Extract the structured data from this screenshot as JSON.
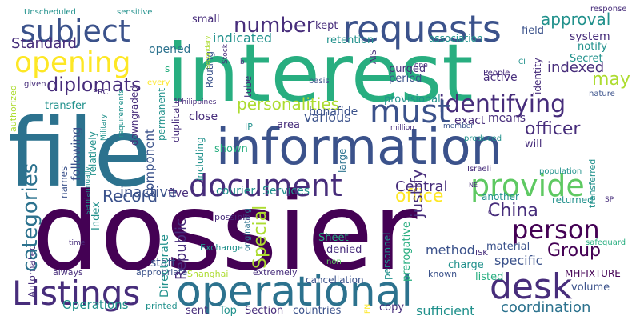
{
  "palette": {
    "dark_purple": "#440154",
    "indigo": "#472d7b",
    "slate_blue": "#3b528b",
    "steel_blue": "#2c728e",
    "teal": "#21918c",
    "sea_green": "#28ae80",
    "green": "#5ec962",
    "lime": "#addc30",
    "yellow": "#fde725"
  },
  "words": [
    {
      "text": "dossier",
      "color": "dark_purple"
    },
    {
      "text": "file",
      "color": "steel_blue"
    },
    {
      "text": "interest",
      "color": "sea_green"
    },
    {
      "text": "information",
      "color": "slate_blue"
    },
    {
      "text": "operational",
      "color": "steel_blue"
    },
    {
      "text": "requests",
      "color": "slate_blue"
    },
    {
      "text": "document",
      "color": "indigo"
    },
    {
      "text": "provide",
      "color": "green"
    },
    {
      "text": "Listings",
      "color": "indigo"
    },
    {
      "text": "desk",
      "color": "indigo"
    },
    {
      "text": "identifying",
      "color": "indigo"
    },
    {
      "text": "subject",
      "color": "slate_blue"
    },
    {
      "text": "opening",
      "color": "yellow"
    },
    {
      "text": "must",
      "color": "slate_blue"
    },
    {
      "text": "number",
      "color": "indigo"
    },
    {
      "text": "person",
      "color": "dark_purple"
    },
    {
      "text": "categories",
      "color": "steel_blue"
    },
    {
      "text": "diplomats",
      "color": "indigo"
    },
    {
      "text": "personalities",
      "color": "lime"
    },
    {
      "text": "Standard",
      "color": "indigo"
    },
    {
      "text": "approval",
      "color": "teal"
    },
    {
      "text": "indicated",
      "color": "teal"
    },
    {
      "text": "office",
      "color": "yellow"
    },
    {
      "text": "officer",
      "color": "indigo"
    },
    {
      "text": "Group",
      "color": "dark_purple"
    },
    {
      "text": "Central",
      "color": "indigo"
    },
    {
      "text": "China",
      "color": "indigo"
    },
    {
      "text": "Record",
      "color": "slate_blue"
    },
    {
      "text": "inactive",
      "color": "slate_blue"
    },
    {
      "text": "coordination",
      "color": "steel_blue"
    },
    {
      "text": "may",
      "color": "lime"
    },
    {
      "text": "indexed",
      "color": "indigo"
    },
    {
      "text": "Special",
      "color": "lime"
    },
    {
      "text": "Republic",
      "color": "indigo"
    },
    {
      "text": "Operations",
      "color": "teal"
    },
    {
      "text": "Directorate",
      "color": "teal"
    },
    {
      "text": "justify",
      "color": "indigo"
    },
    {
      "text": "specific",
      "color": "slate_blue"
    },
    {
      "text": "sufficient",
      "color": "teal"
    },
    {
      "text": "method",
      "color": "slate_blue"
    },
    {
      "text": "component",
      "color": "slate_blue"
    },
    {
      "text": "following",
      "color": "slate_blue"
    },
    {
      "text": "various",
      "color": "slate_blue"
    },
    {
      "text": "Services",
      "color": "teal"
    },
    {
      "text": "courier",
      "color": "teal"
    },
    {
      "text": "system",
      "color": "indigo"
    },
    {
      "text": "opened",
      "color": "steel_blue"
    },
    {
      "text": "bonafide",
      "color": "slate_blue"
    },
    {
      "text": "means",
      "color": "indigo"
    },
    {
      "text": "exact",
      "color": "indigo"
    },
    {
      "text": "active",
      "color": "indigo"
    },
    {
      "text": "period",
      "color": "slate_blue"
    },
    {
      "text": "purged",
      "color": "indigo"
    },
    {
      "text": "provisional",
      "color": "teal"
    },
    {
      "text": "area",
      "color": "indigo"
    },
    {
      "text": "close",
      "color": "indigo"
    },
    {
      "text": "five",
      "color": "indigo"
    },
    {
      "text": "staff",
      "color": "slate_blue"
    },
    {
      "text": "Index",
      "color": "teal"
    },
    {
      "text": "Automated",
      "color": "indigo"
    },
    {
      "text": "permanent",
      "color": "teal"
    },
    {
      "text": "downgraded",
      "color": "indigo"
    },
    {
      "text": "duplicate",
      "color": "indigo"
    },
    {
      "text": "relatively",
      "color": "teal"
    },
    {
      "text": "names",
      "color": "slate_blue"
    },
    {
      "text": "transfer",
      "color": "teal"
    },
    {
      "text": "including",
      "color": "teal"
    },
    {
      "text": "shown",
      "color": "sea_green"
    },
    {
      "text": "Routing",
      "color": "slate_blue"
    },
    {
      "text": "tube",
      "color": "indigo"
    },
    {
      "text": "small",
      "color": "indigo"
    },
    {
      "text": "kept",
      "color": "indigo"
    },
    {
      "text": "retention",
      "color": "teal"
    },
    {
      "text": "association",
      "color": "teal"
    },
    {
      "text": "field",
      "color": "slate_blue"
    },
    {
      "text": "notify",
      "color": "teal"
    },
    {
      "text": "Secret",
      "color": "teal"
    },
    {
      "text": "identity",
      "color": "indigo"
    },
    {
      "text": "listed",
      "color": "sea_green"
    },
    {
      "text": "volume",
      "color": "slate_blue"
    },
    {
      "text": "MHFIXTURE",
      "color": "dark_purple"
    },
    {
      "text": "copy",
      "color": "indigo"
    },
    {
      "text": "countries",
      "color": "slate_blue"
    },
    {
      "text": "Section",
      "color": "indigo"
    },
    {
      "text": "sent",
      "color": "indigo"
    },
    {
      "text": "Top",
      "color": "teal"
    },
    {
      "text": "charge",
      "color": "teal"
    },
    {
      "text": "denied",
      "color": "indigo"
    },
    {
      "text": "Sheet",
      "color": "sea_green"
    },
    {
      "text": "material",
      "color": "slate_blue"
    },
    {
      "text": "returned",
      "color": "teal"
    },
    {
      "text": "another",
      "color": "teal"
    },
    {
      "text": "large",
      "color": "steel_blue"
    },
    {
      "text": "will",
      "color": "indigo"
    },
    {
      "text": "personnel",
      "color": "teal"
    },
    {
      "text": "prerogative",
      "color": "sea_green"
    },
    {
      "text": "cancellation",
      "color": "slate_blue"
    },
    {
      "text": "Exchange",
      "color": "teal"
    },
    {
      "text": "Shanghai",
      "color": "lime"
    },
    {
      "text": "extremely",
      "color": "indigo"
    },
    {
      "text": "appropriate",
      "color": "slate_blue"
    },
    {
      "text": "printed",
      "color": "teal"
    },
    {
      "text": "always",
      "color": "indigo"
    },
    {
      "text": "known",
      "color": "slate_blue"
    },
    {
      "text": "originating",
      "color": "steel_blue"
    },
    {
      "text": "possible",
      "color": "indigo"
    },
    {
      "text": "safeguard",
      "color": "sea_green"
    },
    {
      "text": "ISK",
      "color": "indigo"
    },
    {
      "text": "Unscheduled",
      "color": "teal"
    },
    {
      "text": "sensitive",
      "color": "teal"
    },
    {
      "text": "response",
      "color": "indigo"
    },
    {
      "text": "Israeli",
      "color": "indigo"
    },
    {
      "text": "population",
      "color": "teal"
    },
    {
      "text": "People",
      "color": "indigo"
    },
    {
      "text": "member",
      "color": "slate_blue"
    },
    {
      "text": "million",
      "color": "indigo"
    },
    {
      "text": "produced",
      "color": "teal"
    },
    {
      "text": "basis",
      "color": "slate_blue"
    },
    {
      "text": "nature",
      "color": "slate_blue"
    },
    {
      "text": "Philippines",
      "color": "indigo"
    },
    {
      "text": "requirements",
      "color": "teal"
    },
    {
      "text": "Military",
      "color": "teal"
    },
    {
      "text": "PRC",
      "color": "indigo"
    },
    {
      "text": "given",
      "color": "indigo"
    },
    {
      "text": "every",
      "color": "yellow"
    },
    {
      "text": "authorized",
      "color": "lime"
    },
    {
      "text": "semiannually",
      "color": "teal"
    },
    {
      "text": "time",
      "color": "indigo"
    },
    {
      "text": "secondary",
      "color": "lime"
    },
    {
      "text": "Stock",
      "color": "indigo"
    },
    {
      "text": "AIS",
      "color": "indigo"
    },
    {
      "text": "IP",
      "color": "teal"
    },
    {
      "text": "transferred",
      "color": "teal"
    },
    {
      "text": "non",
      "color": "green"
    },
    {
      "text": "one",
      "color": "indigo"
    },
    {
      "text": "CI",
      "color": "teal"
    },
    {
      "text": "SP",
      "color": "indigo"
    },
    {
      "text": "NE",
      "color": "indigo"
    },
    {
      "text": "C",
      "color": "indigo"
    },
    {
      "text": "PN",
      "color": "yellow"
    },
    {
      "text": "s",
      "color": "sea_green"
    },
    {
      "text": "b",
      "color": "indigo"
    }
  ]
}
